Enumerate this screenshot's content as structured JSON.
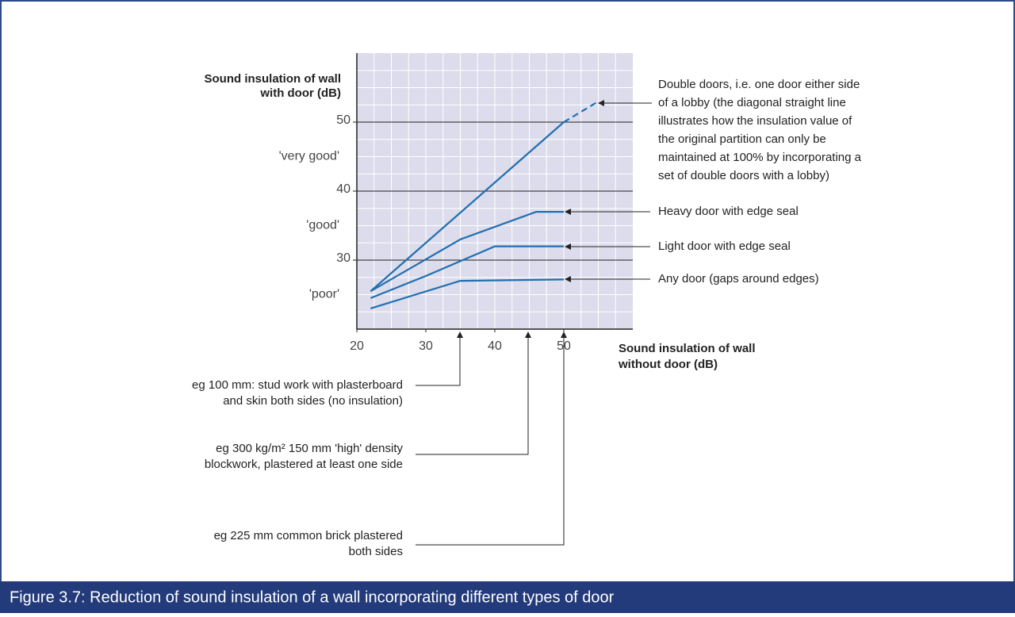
{
  "chart_data": {
    "type": "line",
    "caption": "Figure 3.7: Reduction of sound insulation of a wall incorporating different types of door",
    "y_axis_label": [
      "Sound insulation of wall",
      "with door (dB)"
    ],
    "x_axis_label": [
      "Sound insulation of wall",
      "without door (dB)"
    ],
    "xlim": [
      20,
      60
    ],
    "ylim": [
      20,
      60
    ],
    "xticks": [
      20,
      30,
      40,
      50
    ],
    "yticks": [
      30,
      40,
      50
    ],
    "minor_grid": 2.5,
    "color": "#1f6fb0",
    "bands": [
      {
        "label": "'very good'",
        "y": 45
      },
      {
        "label": "'good'",
        "y": 35
      },
      {
        "label": "'poor'",
        "y": 25
      }
    ],
    "series": [
      {
        "x": [
          22,
          50
        ],
        "values": [
          25.5,
          50
        ]
      },
      {
        "x": [
          50,
          55
        ],
        "values": [
          50,
          53
        ],
        "dashed": true
      },
      {
        "x": [
          22,
          35,
          46,
          50
        ],
        "values": [
          25.5,
          33,
          37,
          37
        ]
      },
      {
        "x": [
          22,
          30,
          40,
          50
        ],
        "values": [
          24.5,
          27.7,
          32,
          32
        ]
      },
      {
        "x": [
          22,
          35,
          50
        ],
        "values": [
          23,
          27,
          27.2
        ]
      }
    ],
    "right_notes": [
      {
        "lines": [
          "Double doors, i.e. one door either side",
          "of a lobby (the diagonal straight line",
          "illustrates how the insulation value of",
          "the original partition can only be",
          "maintained at 100% by incorporating a",
          "set of double doors with a lobby)"
        ]
      },
      {
        "lines": [
          "Heavy door with edge seal"
        ]
      },
      {
        "lines": [
          "Light door with edge seal"
        ]
      },
      {
        "lines": [
          "Any door (gaps around edges)"
        ]
      }
    ],
    "bottom_notes": [
      {
        "lines": [
          "eg 100  mm: stud work with plasterboard",
          "and skin both sides (no insulation)"
        ]
      },
      {
        "lines": [
          "eg 300 kg/m² 150 mm 'high' density",
          "blockwork, plastered at least one side"
        ]
      },
      {
        "lines": [
          "eg 225 mm common brick plastered",
          "both sides"
        ]
      }
    ]
  }
}
